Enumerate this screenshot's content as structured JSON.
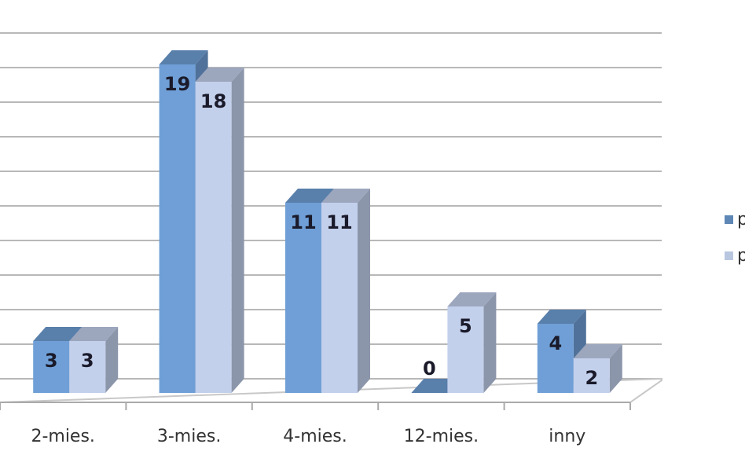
{
  "chart_data": {
    "type": "bar3d",
    "categories": [
      "2-mies.",
      "3-mies.",
      "4-mies.",
      "12-mies.",
      "inny"
    ],
    "series": [
      {
        "name": "p",
        "color": "#6f9fd6",
        "values": [
          3,
          19,
          11,
          0,
          4
        ]
      },
      {
        "name": "p",
        "color": "#c3d0ec",
        "values": [
          3,
          18,
          11,
          5,
          2
        ]
      }
    ],
    "ylim": [
      0,
      20
    ],
    "yticks": [
      0,
      2,
      4,
      6,
      8,
      10,
      12,
      14,
      16,
      18,
      20
    ],
    "grid": true
  }
}
